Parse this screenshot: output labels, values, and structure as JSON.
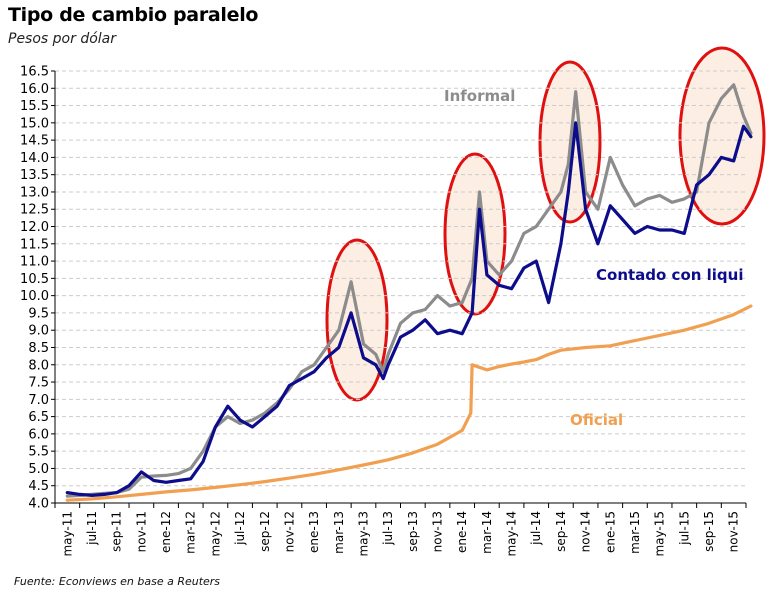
{
  "header": {
    "title": "Tipo de cambio paralelo",
    "subtitle": "Pesos por dólar"
  },
  "footer": {
    "source": "Fuente: Econviews en base a Reuters"
  },
  "colors": {
    "informal": "#8c8c8c",
    "ccl": "#0d0d8c",
    "oficial": "#f0a050",
    "highlight_fill": "#fdeee3",
    "highlight_stroke": "#e01010",
    "grid": "#cccccc"
  },
  "chart_data": {
    "type": "line",
    "title": "Tipo de cambio paralelo",
    "subtitle": "Pesos por dólar",
    "xlabel": "",
    "ylabel": "",
    "ylim": [
      4.0,
      16.5
    ],
    "y_ticks": [
      "4.0",
      "4.5",
      "5.0",
      "5.5",
      "6.0",
      "6.5",
      "7.0",
      "7.5",
      "8.0",
      "8.5",
      "9.0",
      "9.5",
      "10.0",
      "10.5",
      "11.0",
      "11.5",
      "12.0",
      "12.5",
      "13.0",
      "13.5",
      "14.0",
      "14.5",
      "15.0",
      "15.5",
      "16.0",
      "16.5"
    ],
    "x_ticks": [
      "may-11",
      "jul-11",
      "sep-11",
      "nov-11",
      "ene-12",
      "mar-12",
      "may-12",
      "jul-12",
      "sep-12",
      "nov-12",
      "ene-13",
      "mar-13",
      "may-13",
      "jul-13",
      "sep-13",
      "nov-13",
      "ene-14",
      "mar-14",
      "may-14",
      "jul-14",
      "sep-14",
      "nov-14",
      "ene-15",
      "mar-15",
      "may-15",
      "jul-15",
      "sep-15",
      "nov-15"
    ],
    "grid": true,
    "series": [
      {
        "name": "Informal",
        "x": [
          0,
          0.5,
          1,
          1.5,
          2,
          2.5,
          3,
          3.5,
          4,
          4.5,
          5,
          5.5,
          6,
          6.5,
          7,
          7.5,
          8,
          8.5,
          9,
          9.5,
          10,
          10.5,
          11,
          11.5,
          12,
          12.5,
          12.8,
          13,
          13.5,
          14,
          14.5,
          15,
          15.5,
          16,
          16.4,
          16.7,
          17,
          17.5,
          18,
          18.5,
          19,
          19.5,
          20,
          20.3,
          20.6,
          21,
          21.5,
          22,
          22.5,
          23,
          23.5,
          24,
          24.5,
          25,
          25.5,
          26,
          26.5,
          27,
          27.4,
          27.7
        ],
        "values": [
          4.2,
          4.22,
          4.25,
          4.28,
          4.3,
          4.4,
          4.75,
          4.78,
          4.8,
          4.85,
          5.0,
          5.5,
          6.2,
          6.5,
          6.3,
          6.4,
          6.6,
          6.9,
          7.3,
          7.8,
          8.0,
          8.5,
          9.0,
          10.4,
          8.6,
          8.3,
          7.8,
          8.3,
          9.2,
          9.5,
          9.6,
          10.0,
          9.7,
          9.8,
          10.5,
          13.0,
          11.0,
          10.6,
          11.0,
          11.8,
          12.0,
          12.5,
          13.0,
          13.8,
          15.9,
          13.0,
          12.5,
          14.0,
          13.2,
          12.6,
          12.8,
          12.9,
          12.7,
          12.8,
          13.0,
          15.0,
          15.7,
          16.1,
          15.2,
          14.7
        ]
      },
      {
        "name": "Contado con liqui",
        "x": [
          0,
          0.5,
          1,
          1.5,
          2,
          2.5,
          3,
          3.5,
          4,
          4.5,
          5,
          5.5,
          6,
          6.5,
          7,
          7.5,
          8,
          8.5,
          9,
          9.5,
          10,
          10.5,
          11,
          11.5,
          12,
          12.5,
          12.8,
          13,
          13.5,
          14,
          14.5,
          15,
          15.5,
          16,
          16.4,
          16.7,
          17,
          17.5,
          18,
          18.5,
          19,
          19.5,
          20,
          20.3,
          20.6,
          21,
          21.5,
          22,
          22.5,
          23,
          23.5,
          24,
          24.5,
          25,
          25.5,
          26,
          26.5,
          27,
          27.4,
          27.7
        ],
        "values": [
          4.3,
          4.25,
          4.22,
          4.25,
          4.3,
          4.5,
          4.9,
          4.65,
          4.6,
          4.65,
          4.7,
          5.2,
          6.2,
          6.8,
          6.4,
          6.2,
          6.5,
          6.8,
          7.4,
          7.6,
          7.8,
          8.2,
          8.5,
          9.5,
          8.2,
          8.0,
          7.6,
          8.0,
          8.8,
          9.0,
          9.3,
          8.9,
          9.0,
          8.9,
          9.5,
          12.5,
          10.6,
          10.3,
          10.2,
          10.8,
          11.0,
          9.8,
          11.5,
          13.0,
          15.0,
          12.5,
          11.5,
          12.6,
          12.2,
          11.8,
          12.0,
          11.9,
          11.9,
          11.8,
          13.2,
          13.5,
          14.0,
          13.9,
          14.9,
          14.6
        ]
      },
      {
        "name": "Oficial",
        "x": [
          0,
          1,
          2,
          3,
          4,
          5,
          6,
          7,
          8,
          9,
          10,
          11,
          12,
          13,
          14,
          15,
          16,
          16.35,
          16.4,
          17,
          17.5,
          18,
          18.5,
          19,
          19.5,
          20,
          21,
          22,
          23,
          24,
          25,
          26,
          27,
          27.7
        ],
        "values": [
          4.08,
          4.12,
          4.18,
          4.25,
          4.32,
          4.38,
          4.45,
          4.53,
          4.62,
          4.72,
          4.83,
          4.96,
          5.1,
          5.25,
          5.45,
          5.7,
          6.1,
          6.6,
          8.0,
          7.85,
          7.95,
          8.02,
          8.08,
          8.15,
          8.3,
          8.42,
          8.5,
          8.55,
          8.7,
          8.85,
          9.0,
          9.2,
          9.45,
          9.7
        ]
      }
    ],
    "annotations": [
      "Informal",
      "Contado con liqui",
      "Oficial"
    ]
  }
}
